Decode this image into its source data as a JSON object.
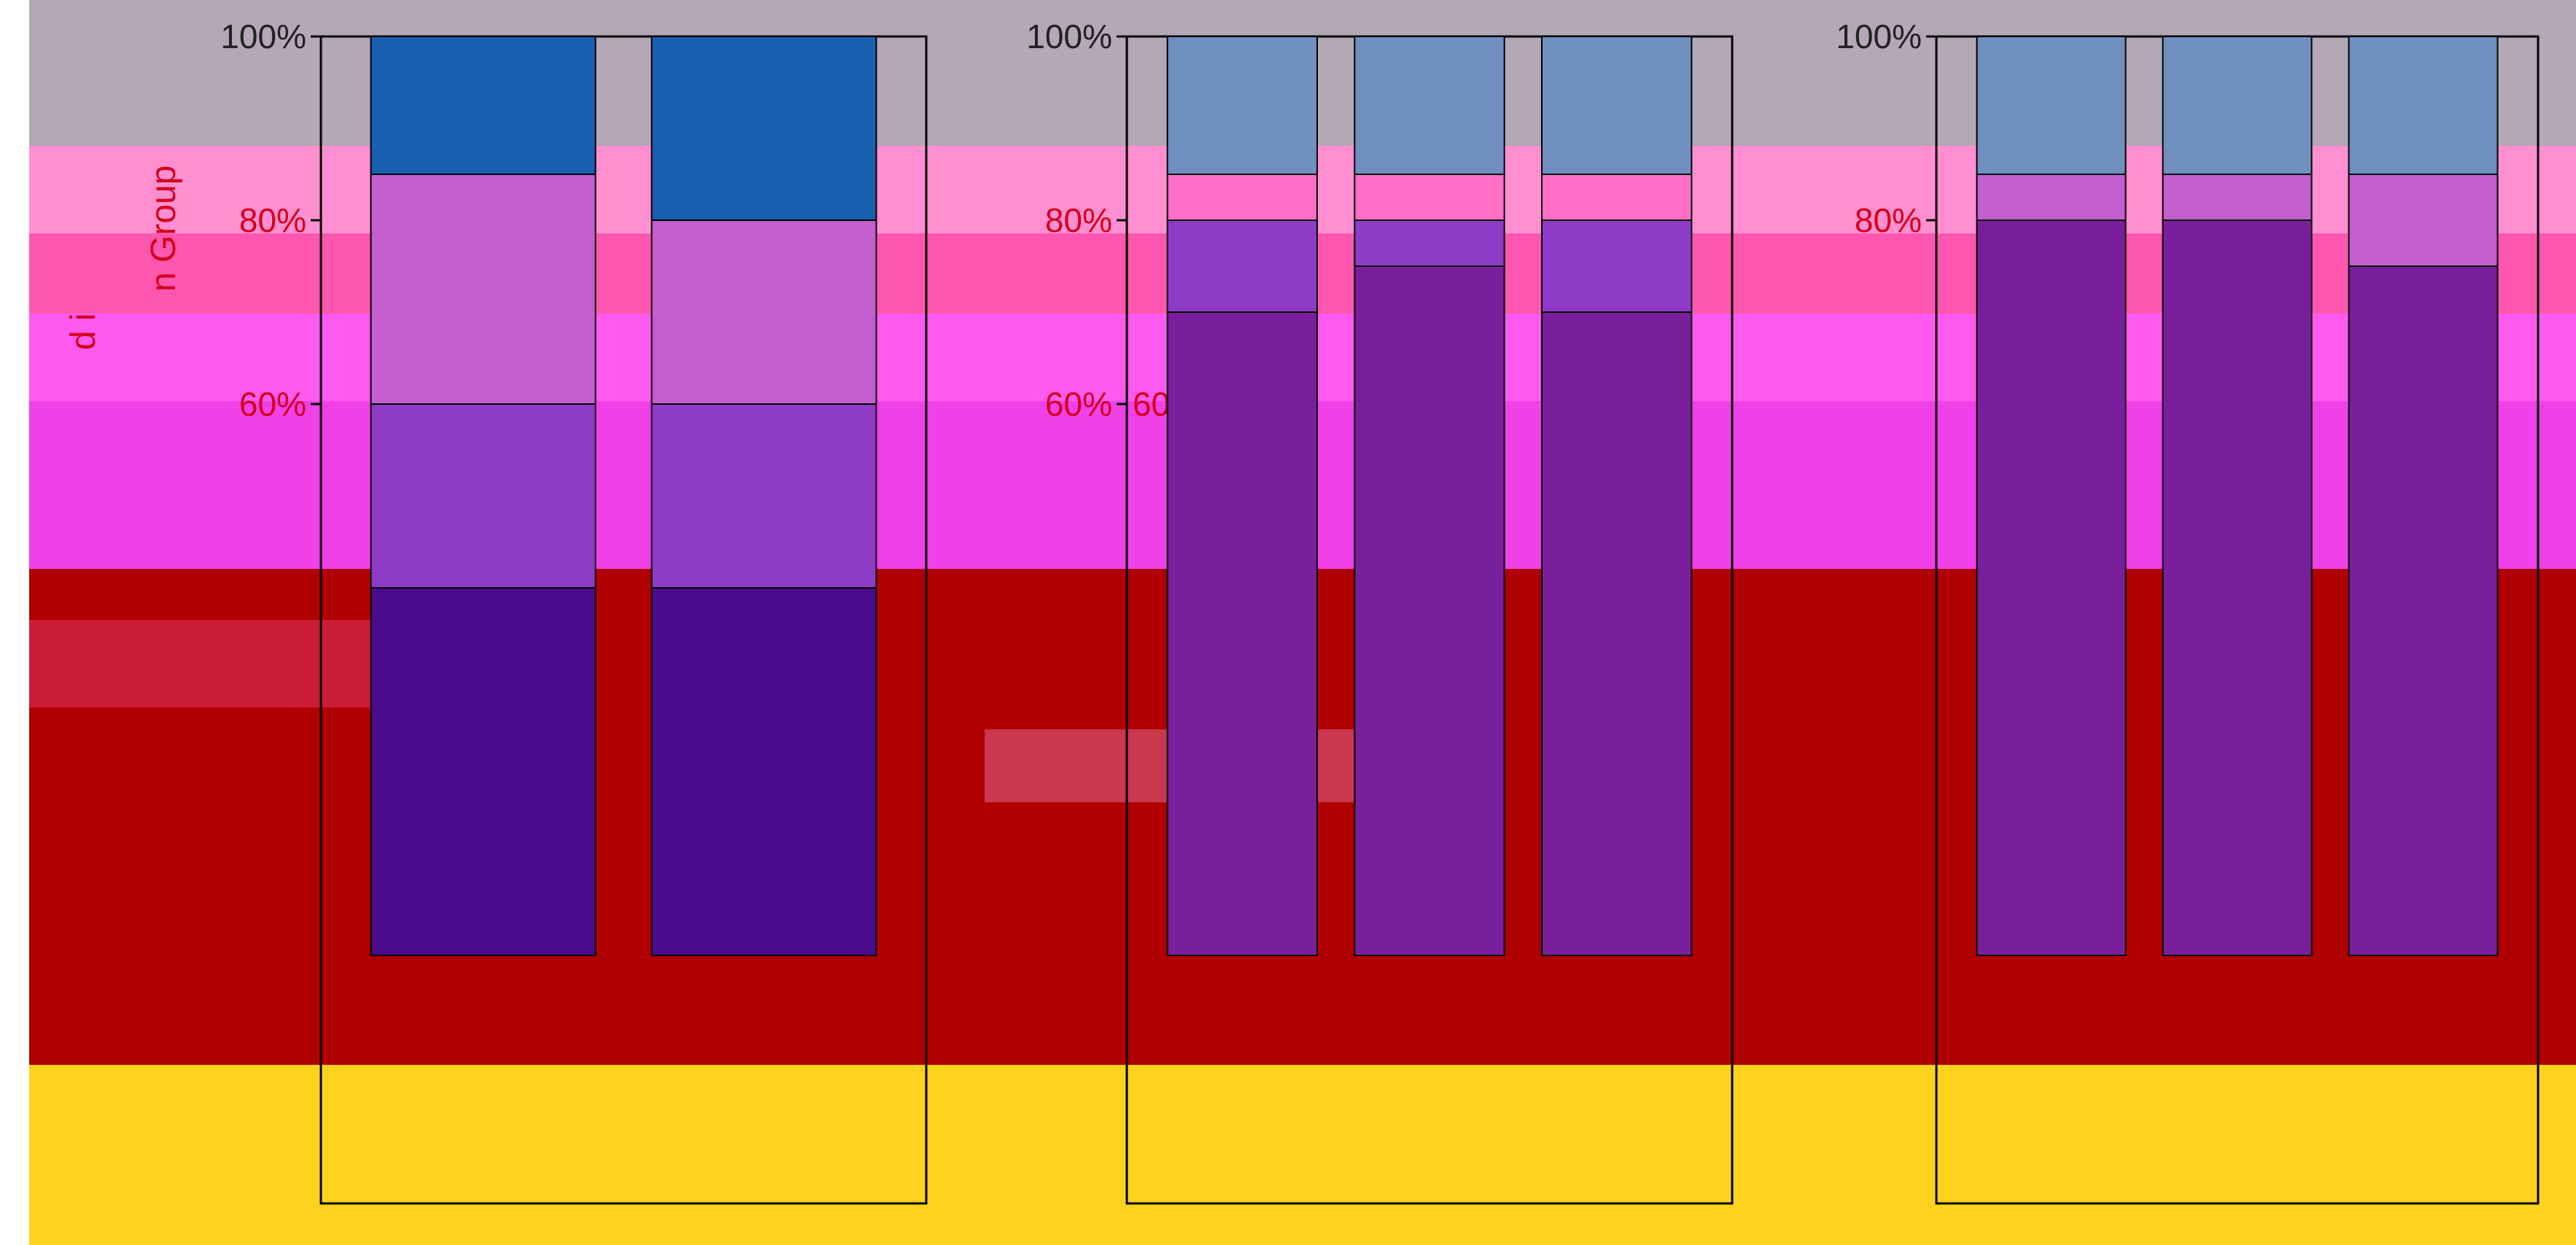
{
  "ylabel": "n Group",
  "ylabel_partial": "d i",
  "chart_data": [
    {
      "type": "bar",
      "stacked": true,
      "ylim": [
        0,
        100
      ],
      "yticks": [
        "100%",
        "80%",
        "60%"
      ],
      "categories": [
        "",
        ""
      ],
      "series": [
        {
          "values": [
            40,
            40
          ],
          "color": "#4a0a8c"
        },
        {
          "values": [
            20,
            20
          ],
          "color": "#8e3cc8"
        },
        {
          "values": [
            25,
            20
          ],
          "color": "#c45fd0"
        },
        {
          "values": [
            15,
            20
          ],
          "color": "#1a5fb0"
        }
      ]
    },
    {
      "type": "bar",
      "stacked": true,
      "ylim": [
        0,
        100
      ],
      "yticks": [
        "100%",
        "80%",
        "60%",
        "60%"
      ],
      "categories": [
        "",
        "",
        ""
      ],
      "series": [
        {
          "values": [
            70,
            75,
            70
          ],
          "color": "#7a1f9c"
        },
        {
          "values": [
            10,
            5,
            10
          ],
          "color": "#8e3cc8"
        },
        {
          "values": [
            5,
            5,
            5
          ],
          "color": "#ff6ec7"
        },
        {
          "values": [
            15,
            15,
            15
          ],
          "color": "#6f8fbf"
        }
      ]
    },
    {
      "type": "bar",
      "stacked": true,
      "ylim": [
        0,
        100
      ],
      "yticks": [
        "100%",
        "80%"
      ],
      "categories": [
        "",
        "",
        ""
      ],
      "series": [
        {
          "values": [
            80,
            80,
            75
          ],
          "color": "#7a1f9c"
        },
        {
          "values": [
            5,
            5,
            10
          ],
          "color": "#c45fd0"
        },
        {
          "values": [
            15,
            15,
            15
          ],
          "color": "#6f8fbf"
        }
      ]
    }
  ],
  "colors": {
    "background_top": "#b4a7b6",
    "band_pink": "#ff8fd0",
    "band_magenta": "#ff4fd8",
    "band_red": "#b00000",
    "band_yellow": "#ffd21e",
    "tick_text": "#222222"
  }
}
